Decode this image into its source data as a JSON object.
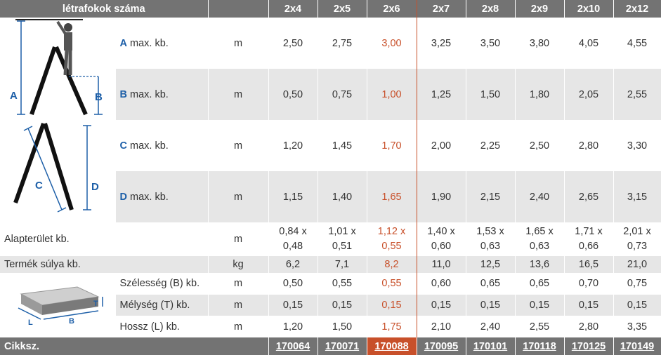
{
  "header": {
    "title": "létrafokok száma",
    "columns": [
      "2x4",
      "2x5",
      "2x6",
      "2x7",
      "2x8",
      "2x9",
      "2x10",
      "2x12"
    ],
    "highlight_index": 2
  },
  "rows": {
    "A": {
      "letter": "A",
      "label": " max. kb.",
      "unit": "m",
      "values": [
        "2,50",
        "2,75",
        "3,00",
        "3,25",
        "3,50",
        "3,80",
        "4,05",
        "4,55"
      ]
    },
    "B": {
      "letter": "B",
      "label": " max. kb.",
      "unit": "m",
      "values": [
        "0,50",
        "0,75",
        "1,00",
        "1,25",
        "1,50",
        "1,80",
        "2,05",
        "2,55"
      ]
    },
    "C": {
      "letter": "C",
      "label": " max. kb.",
      "unit": "m",
      "values": [
        "1,20",
        "1,45",
        "1,70",
        "2,00",
        "2,25",
        "2,50",
        "2,80",
        "3,30"
      ]
    },
    "D": {
      "letter": "D",
      "label": " max. kb.",
      "unit": "m",
      "values": [
        "1,15",
        "1,40",
        "1,65",
        "1,90",
        "2,15",
        "2,40",
        "2,65",
        "3,15"
      ]
    },
    "alap": {
      "label": "Alapterület kb.",
      "unit": "m",
      "values": [
        [
          "0,84 x",
          "0,48"
        ],
        [
          "1,01 x",
          "0,51"
        ],
        [
          "1,12 x",
          "0,55"
        ],
        [
          "1,40 x",
          "0,60"
        ],
        [
          "1,53 x",
          "0,63"
        ],
        [
          "1,65 x",
          "0,63"
        ],
        [
          "1,71 x",
          "0,66"
        ],
        [
          "2,01 x",
          "0,73"
        ]
      ]
    },
    "suly": {
      "label": "Termék súlya kb.",
      "unit": "kg",
      "values": [
        "6,2",
        "7,1",
        "8,2",
        "11,0",
        "12,5",
        "13,6",
        "16,5",
        "21,0"
      ]
    },
    "szel": {
      "label": "Szélesség (B) kb.",
      "unit": "m",
      "values": [
        "0,50",
        "0,55",
        "0,55",
        "0,60",
        "0,65",
        "0,65",
        "0,70",
        "0,75"
      ]
    },
    "mely": {
      "label": "Mélység (T) kb.",
      "unit": "m",
      "values": [
        "0,15",
        "0,15",
        "0,15",
        "0,15",
        "0,15",
        "0,15",
        "0,15",
        "0,15"
      ]
    },
    "hossz": {
      "label": "Hossz (L) kb.",
      "unit": "m",
      "values": [
        "1,20",
        "1,50",
        "1,75",
        "2,10",
        "2,40",
        "2,55",
        "2,80",
        "3,35"
      ]
    }
  },
  "footer": {
    "label": "Cikksz.",
    "codes": [
      "170064",
      "170071",
      "170088",
      "170095",
      "170101",
      "170118",
      "170125",
      "170149"
    ]
  },
  "diagram_labels": {
    "ladder_top": [
      "A",
      "B"
    ],
    "ladder_bottom": [
      "C",
      "D"
    ],
    "box": [
      "T",
      "L",
      "B"
    ]
  },
  "colors": {
    "header_bg": "#737373",
    "stripe": "#e6e6e6",
    "highlight": "#c8502a",
    "letter": "#1d5fa8"
  }
}
